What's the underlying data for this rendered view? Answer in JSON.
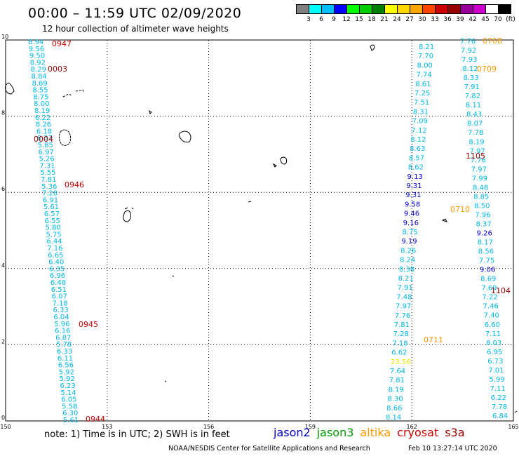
{
  "title": "00:00 – 11:59 UTC 02/09/2020",
  "subtitle": "12 hour collection of altimeter wave heights",
  "colorbar": {
    "colors": [
      "#808080",
      "#00ffff",
      "#00bfff",
      "#0000ff",
      "#00ff00",
      "#00cc00",
      "#008000",
      "#ffff00",
      "#ffd700",
      "#ffa500",
      "#ff4500",
      "#cc0000",
      "#990000",
      "#990099",
      "#cc00cc",
      "#ffffff",
      "#000000"
    ],
    "labels": [
      "3",
      "6",
      "9",
      "12",
      "15",
      "18",
      "21",
      "24",
      "27",
      "30",
      "33",
      "36",
      "39",
      "42",
      "45",
      "70",
      "(ft)"
    ]
  },
  "axes": {
    "x_ticks": [
      "150",
      "153",
      "156",
      "159",
      "162",
      "165"
    ],
    "y_ticks": [
      "0",
      "2",
      "4",
      "6",
      "8",
      "10"
    ],
    "xlim": [
      150,
      165
    ],
    "ylim": [
      0,
      10
    ]
  },
  "satellite_colors": {
    "jason2": "#0000cc",
    "jason3": "#009900",
    "altika": "#ff9900",
    "cryosat": "#cc0000",
    "s3a": "#990000",
    "cyan": "#00b8e6",
    "yellow": "#e6e600"
  },
  "tracks": {
    "west": {
      "color": "cyan",
      "values": [
        "8.94",
        "9.56",
        "9.50",
        "8.92",
        "8.29",
        "8.84",
        "8.69",
        "8.55",
        "8.75",
        "8.00",
        "8.19",
        "6.22",
        "8.26",
        "6.18",
        "8.37",
        "5.85",
        "6.97",
        "5.26",
        "7.31",
        "5.55",
        "7.81",
        "5.36",
        "7.28",
        "6.91",
        "5.61",
        "6.57",
        "6.55",
        "5.80",
        "5.75",
        "6.44",
        "7.16",
        "6.65",
        "6.40",
        "6.35",
        "6.96",
        "6.48",
        "6.51",
        "6.07",
        "7.18",
        "6.33",
        "6.04",
        "5.96",
        "6.16",
        "6.87",
        "5.78",
        "6.33",
        "6.11",
        "6.56",
        "5.92",
        "5.92",
        "6.23",
        "5.14",
        "6.05",
        "5.58",
        "6.30",
        "5.61"
      ]
    },
    "east_a": {
      "values": [
        "8.21",
        "7.70",
        "8.00",
        "7.74",
        "8.61",
        "7.25",
        "7.51",
        "8.31",
        "7.09",
        "7.12",
        "8.12",
        "8.63",
        "8.57",
        "8.62",
        "9.13",
        "9.31",
        "9.31",
        "9.58",
        "9.46",
        "9.16",
        "8.75",
        "9.19",
        "8.26",
        "8.24",
        "8.38",
        "8.21",
        "7.91",
        "7.48",
        "7.97",
        "7.76",
        "7.81",
        "7.28",
        "7.18",
        "6.62",
        "23.56",
        "7.64",
        "7.81",
        "8.19",
        "8.30",
        "8.66",
        "8.14"
      ],
      "colors": [
        "cyan",
        "cyan",
        "cyan",
        "cyan",
        "cyan",
        "cyan",
        "cyan",
        "cyan",
        "cyan",
        "cyan",
        "cyan",
        "cyan",
        "cyan",
        "cyan",
        "jason2",
        "jason2",
        "jason2",
        "jason2",
        "jason2",
        "jason2",
        "cyan",
        "jason2",
        "cyan",
        "cyan",
        "cyan",
        "cyan",
        "cyan",
        "cyan",
        "cyan",
        "cyan",
        "cyan",
        "cyan",
        "cyan",
        "cyan",
        "yellow",
        "cyan",
        "cyan",
        "cyan",
        "cyan",
        "cyan",
        "cyan"
      ]
    },
    "east_b": {
      "values": [
        "7.76",
        "7.92",
        "7.93",
        "8.12",
        "8.33",
        "7.91",
        "7.82",
        "8.11",
        "8.43",
        "8.07",
        "7.78",
        "8.19",
        "7.97",
        "7.76",
        "7.97",
        "7.99",
        "8.48",
        "8.85",
        "8.50",
        "7.96",
        "8.37",
        "9.26",
        "8.17",
        "8.56",
        "7.75",
        "9.06",
        "8.69",
        "7.69",
        "7.22",
        "7.46",
        "7.40",
        "6.60",
        "7.11",
        "8.03",
        "6.95",
        "6.73",
        "7.01",
        "5.99",
        "7.11",
        "6.22",
        "7.78",
        "6.84"
      ],
      "colors": [
        "cyan",
        "cyan",
        "cyan",
        "cyan",
        "cyan",
        "cyan",
        "cyan",
        "cyan",
        "cyan",
        "cyan",
        "cyan",
        "cyan",
        "cyan",
        "cyan",
        "cyan",
        "cyan",
        "cyan",
        "cyan",
        "cyan",
        "cyan",
        "cyan",
        "jason2",
        "cyan",
        "cyan",
        "cyan",
        "jason2",
        "cyan",
        "cyan",
        "cyan",
        "cyan",
        "cyan",
        "cyan",
        "cyan",
        "cyan",
        "cyan",
        "cyan",
        "cyan",
        "cyan",
        "cyan",
        "cyan",
        "cyan",
        "cyan"
      ]
    }
  },
  "times": [
    {
      "label": "0947",
      "color": "cryosat"
    },
    {
      "label": "0003",
      "color": "s3a"
    },
    {
      "label": "0004",
      "color": "s3a"
    },
    {
      "label": "0946",
      "color": "cryosat"
    },
    {
      "label": "0945",
      "color": "cryosat"
    },
    {
      "label": "0944",
      "color": "cryosat"
    },
    {
      "label": "0708",
      "color": "altika"
    },
    {
      "label": "0709",
      "color": "altika"
    },
    {
      "label": "1105",
      "color": "s3a"
    },
    {
      "label": "0710",
      "color": "altika"
    },
    {
      "label": "1104",
      "color": "s3a"
    },
    {
      "label": "0711",
      "color": "altika"
    }
  ],
  "note": "note:  1) Time is in UTC; 2) SWH is in feet",
  "legend": [
    {
      "name": "jason2",
      "color": "jason2"
    },
    {
      "name": "jason3",
      "color": "jason3"
    },
    {
      "name": "altika",
      "color": "altika"
    },
    {
      "name": "cryosat",
      "color": "cryosat"
    },
    {
      "name": "s3a",
      "color": "s3a"
    }
  ],
  "footer": "NOAA/NESDIS Center for Satellite Applications and Research",
  "timestamp": "Feb 10 13:27:14 UTC 2020"
}
